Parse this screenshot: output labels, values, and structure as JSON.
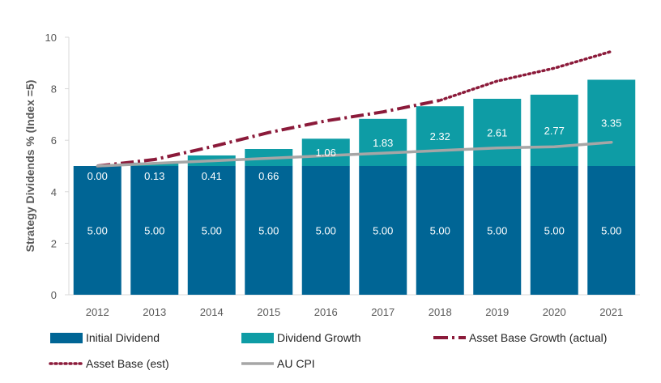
{
  "chart_data": {
    "type": "bar",
    "stacked": true,
    "title": "",
    "xlabel": "",
    "ylabel": "Strategy Dividends % (Index =5)",
    "ylim": [
      0,
      10
    ],
    "yticks": [
      0,
      2,
      4,
      6,
      8,
      10
    ],
    "grid": false,
    "legend_position": "bottom",
    "categories": [
      "2012",
      "2013",
      "2014",
      "2015",
      "2016",
      "2017",
      "2018",
      "2019",
      "2020",
      "2021"
    ],
    "series": [
      {
        "name": "Initial Dividend",
        "kind": "bar",
        "color": "#006595",
        "values": [
          5.0,
          5.0,
          5.0,
          5.0,
          5.0,
          5.0,
          5.0,
          5.0,
          5.0,
          5.0
        ],
        "labels": [
          "5.00",
          "5.00",
          "5.00",
          "5.00",
          "5.00",
          "5.00",
          "5.00",
          "5.00",
          "5.00",
          "5.00"
        ]
      },
      {
        "name": "Dividend Growth",
        "kind": "bar",
        "color": "#0E9CA5",
        "values": [
          0.0,
          0.13,
          0.41,
          0.66,
          1.06,
          1.83,
          2.32,
          2.61,
          2.77,
          3.35
        ],
        "labels": [
          "0.00",
          "0.13",
          "0.41",
          "0.66",
          "1.06",
          "1.83",
          "2.32",
          "2.61",
          "2.77",
          "3.35"
        ]
      },
      {
        "name": "Asset Base Growth (actual)",
        "kind": "line",
        "dash": "dashdot",
        "color": "#8B1A3A",
        "values": [
          5.0,
          5.25,
          5.75,
          6.3,
          6.75,
          7.1,
          7.55,
          null,
          null,
          null
        ]
      },
      {
        "name": "Asset Base (est)",
        "kind": "line",
        "dash": "dotted",
        "color": "#8B1A3A",
        "values": [
          null,
          null,
          null,
          null,
          null,
          null,
          7.55,
          8.3,
          8.8,
          9.45
        ]
      },
      {
        "name": "AU CPI",
        "kind": "line",
        "dash": "solid",
        "color": "#A6A6A6",
        "values": [
          5.0,
          5.1,
          5.2,
          5.3,
          5.4,
          5.5,
          5.6,
          5.7,
          5.75,
          5.92
        ]
      }
    ]
  }
}
